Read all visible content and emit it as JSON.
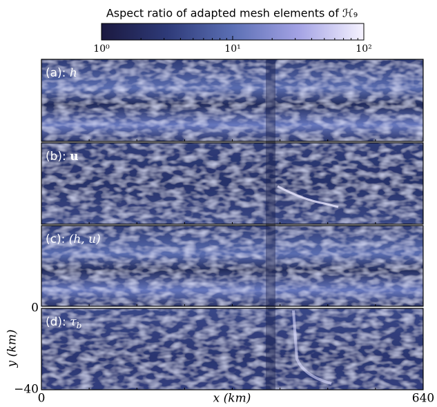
{
  "chart_data": {
    "type": "mesh-panels",
    "colorbar": {
      "title": "Aspect ratio of adapted mesh elements of ℋ₉",
      "lim": [
        1,
        100
      ],
      "log": true,
      "ticks": [
        {
          "value": 1,
          "label": "10⁰"
        },
        {
          "value": 10,
          "label": "10¹"
        },
        {
          "value": 100,
          "label": "10²"
        }
      ],
      "minor_ticks": [
        2,
        3,
        4,
        5,
        6,
        7,
        8,
        9,
        20,
        30,
        40,
        50,
        60,
        70,
        80,
        90
      ],
      "colors": [
        "#1b1940",
        "#2e3a78",
        "#5b6fb4",
        "#a3a2e4",
        "#f6f3ff"
      ]
    },
    "panels": [
      {
        "tag": "(a):",
        "symbol": "h"
      },
      {
        "tag": "(b):",
        "symbol": "u"
      },
      {
        "tag": "(c):",
        "symbol": "(h, u)"
      },
      {
        "tag": "(d):",
        "symbol": "τ",
        "subscript": "b"
      }
    ],
    "xlabel": "x (km)",
    "ylabel": "y (km)",
    "xlim": [
      0,
      640
    ],
    "xticks": [
      0,
      640
    ],
    "xminorticks": [
      80,
      160,
      240,
      320,
      400,
      480,
      560
    ],
    "ylim": [
      -40,
      0
    ],
    "yticks": [
      0,
      {
        "value": -40,
        "label": "−40"
      }
    ]
  }
}
